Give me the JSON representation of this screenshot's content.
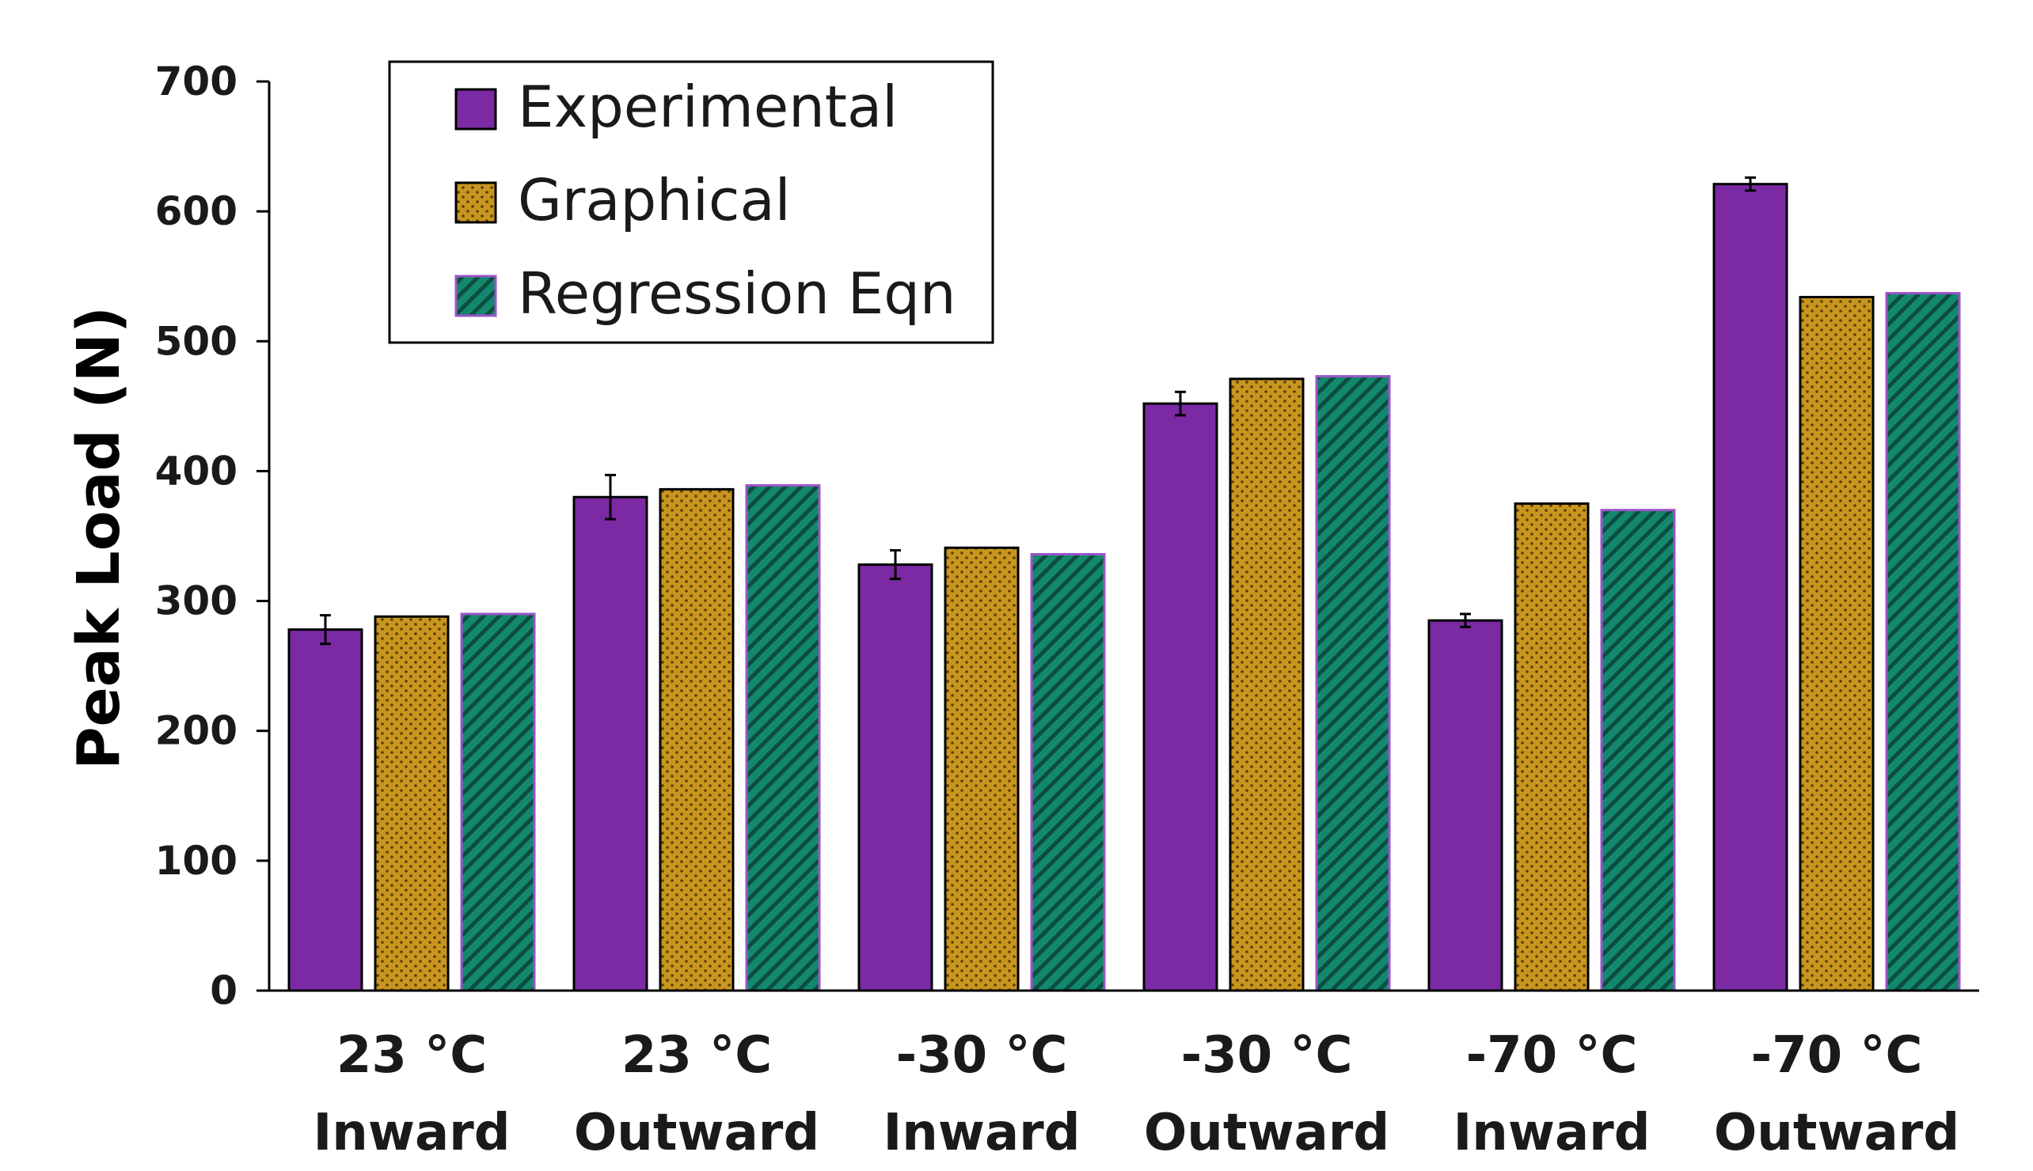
{
  "chart_data": {
    "type": "bar",
    "title": "",
    "xlabel": "",
    "ylabel": "Peak Load (N)",
    "ylim": [
      0,
      700
    ],
    "yticks": [
      0,
      100,
      200,
      300,
      400,
      500,
      600,
      700
    ],
    "grid": false,
    "legend_position": "top-left",
    "categories": [
      {
        "line1": "23 °C",
        "line2": "Inward"
      },
      {
        "line1": "23 °C",
        "line2": "Outward"
      },
      {
        "line1": "-30 °C",
        "line2": "Inward"
      },
      {
        "line1": "-30 °C",
        "line2": "Outward"
      },
      {
        "line1": "-70 °C",
        "line2": "Inward"
      },
      {
        "line1": "-70 °C",
        "line2": "Outward"
      }
    ],
    "series": [
      {
        "name": "Experimental",
        "color": "#7b2aa3",
        "pattern": "solid",
        "values": [
          278,
          380,
          328,
          452,
          285,
          621
        ],
        "errors": [
          11,
          17,
          11,
          9,
          5,
          5
        ]
      },
      {
        "name": "Graphical",
        "color": "#c8961e",
        "pattern": "dotted",
        "values": [
          288,
          386,
          341,
          471,
          375,
          534
        ]
      },
      {
        "name": "Regression Eqn",
        "color": "#13886f",
        "pattern": "hatched",
        "values": [
          290,
          389,
          336,
          473,
          370,
          537
        ]
      }
    ]
  }
}
